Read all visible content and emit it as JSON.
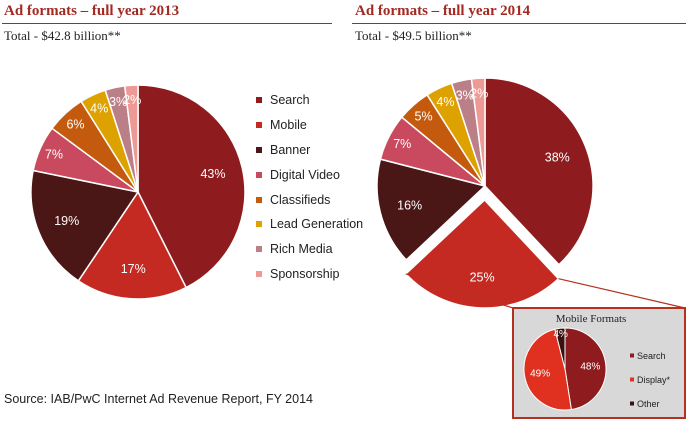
{
  "colors": {
    "title": "#a32a22",
    "series": [
      "#8e1c1f",
      "#c52a22",
      "#4a1616",
      "#c94a5e",
      "#c45a0e",
      "#dda100",
      "#bb8087",
      "#ed9a96"
    ],
    "mobile_series": [
      "#8e1c1f",
      "#e03020",
      "#3a1010"
    ],
    "inset_border": "#b5311f",
    "inset_bg": "#d8d8d8"
  },
  "chart_data": [
    {
      "type": "pie",
      "title": "Ad formats  – full year 2013",
      "subtitle": "Total - $42.8 billion**",
      "categories": [
        "Search",
        "Mobile",
        "Banner",
        "Digital Video",
        "Classifieds",
        "Lead Generation",
        "Rich Media",
        "Sponsorship"
      ],
      "values": [
        43,
        17,
        19,
        7,
        6,
        4,
        3,
        2
      ],
      "data_labels": [
        "43%",
        "17%",
        "19%",
        "7%",
        "6%",
        "4%",
        "3%",
        "2%"
      ],
      "legend_position": "right"
    },
    {
      "type": "pie",
      "title": "Ad formats  – full year 2014",
      "subtitle": "Total - $49.5 billion**",
      "categories": [
        "Search",
        "Mobile",
        "Banner",
        "Digital Video",
        "Classifieds",
        "Lead Generation",
        "Rich Media",
        "Sponsorship"
      ],
      "values": [
        38,
        25,
        16,
        7,
        5,
        4,
        3,
        2
      ],
      "data_labels": [
        "38%",
        "25%",
        "16%",
        "7%",
        "5%",
        "4%",
        "3%",
        "2%"
      ],
      "exploded": "Mobile"
    },
    {
      "type": "pie",
      "title": "Mobile Formats",
      "categories": [
        "Search",
        "Display*",
        "Other"
      ],
      "values": [
        48,
        49,
        4
      ],
      "data_labels": [
        "48%",
        "49%",
        "4%"
      ],
      "legend_position": "right"
    }
  ],
  "source": "Source: IAB/PwC Internet  Ad Revenue  Report, FY 2014"
}
